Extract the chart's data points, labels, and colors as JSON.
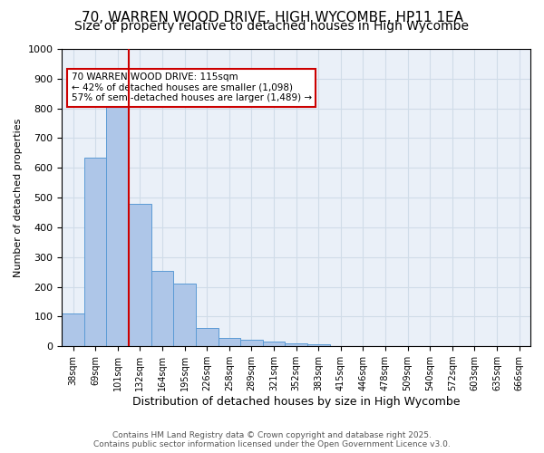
{
  "title1": "70, WARREN WOOD DRIVE, HIGH WYCOMBE, HP11 1EA",
  "title2": "Size of property relative to detached houses in High Wycombe",
  "xlabel": "Distribution of detached houses by size in High Wycombe",
  "ylabel": "Number of detached properties",
  "bar_labels": [
    "38sqm",
    "69sqm",
    "101sqm",
    "132sqm",
    "164sqm",
    "195sqm",
    "226sqm",
    "258sqm",
    "289sqm",
    "321sqm",
    "352sqm",
    "383sqm",
    "415sqm",
    "446sqm",
    "478sqm",
    "509sqm",
    "540sqm",
    "572sqm",
    "603sqm",
    "635sqm",
    "666sqm"
  ],
  "bar_values": [
    110,
    635,
    820,
    480,
    255,
    210,
    63,
    27,
    22,
    15,
    10,
    8,
    0,
    0,
    0,
    0,
    0,
    0,
    0,
    0,
    0
  ],
  "bar_color": "#aec6e8",
  "bar_edge_color": "#5b9bd5",
  "red_line_x": 2.5,
  "annotation_text": "70 WARREN WOOD DRIVE: 115sqm\n← 42% of detached houses are smaller (1,098)\n57% of semi-detached houses are larger (1,489) →",
  "annotation_box_color": "#ffffff",
  "annotation_box_edge": "#cc0000",
  "ylim": [
    0,
    1000
  ],
  "yticks": [
    0,
    100,
    200,
    300,
    400,
    500,
    600,
    700,
    800,
    900,
    1000
  ],
  "grid_color": "#d0dce8",
  "bg_color": "#eaf0f8",
  "footnote": "Contains HM Land Registry data © Crown copyright and database right 2025.\nContains public sector information licensed under the Open Government Licence v3.0.",
  "title1_fontsize": 11,
  "title2_fontsize": 10
}
